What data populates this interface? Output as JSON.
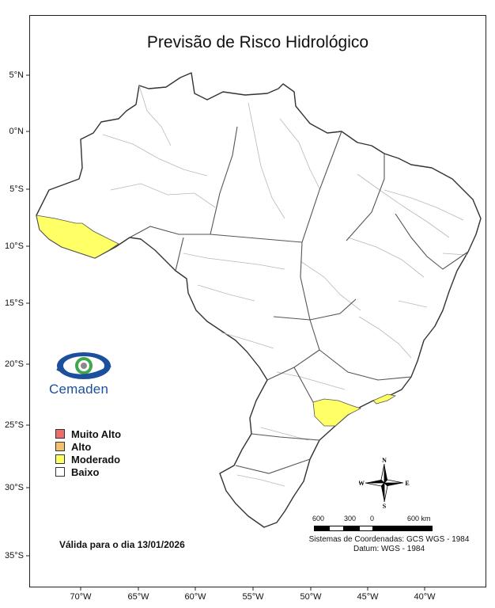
{
  "title": "Previsão de Risco Hidrológico",
  "lat_labels": [
    "5°N",
    "0°N",
    "5°S",
    "10°S",
    "15°S",
    "20°S",
    "25°S",
    "30°S",
    "35°S"
  ],
  "lon_labels": [
    "70°W",
    "65°W",
    "60°W",
    "55°W",
    "50°W",
    "45°W",
    "40°W"
  ],
  "logo": {
    "text": "Cemaden",
    "colors": {
      "blue": "#1c4f9c",
      "green": "#3ea84a",
      "gray": "#8a8a8a"
    }
  },
  "legend": [
    {
      "label": "Muito Alto",
      "color": "#f26b6b"
    },
    {
      "label": "Alto",
      "color": "#f5c06a"
    },
    {
      "label": "Moderado",
      "color": "#ffff66"
    },
    {
      "label": "Baixo",
      "color": "#ffffff"
    }
  ],
  "validity": "Válida para o dia 13/01/2026",
  "compass": {
    "n": "N",
    "s": "S",
    "e": "E",
    "w": "W"
  },
  "scale": {
    "labels": [
      "600",
      "300",
      "0",
      "600 km"
    ]
  },
  "coord_system": {
    "line1": "Sistemas de Coordenadas: GCS WGS - 1984",
    "line2": "Datum: WGS - 1984"
  },
  "risk_regions": [
    {
      "name": "Acre / Amazonas (Southwest)",
      "level": "Moderado"
    },
    {
      "name": "São Paulo",
      "level": "Moderado"
    },
    {
      "name": "Rio de Janeiro coast",
      "level": "Moderado"
    }
  ]
}
